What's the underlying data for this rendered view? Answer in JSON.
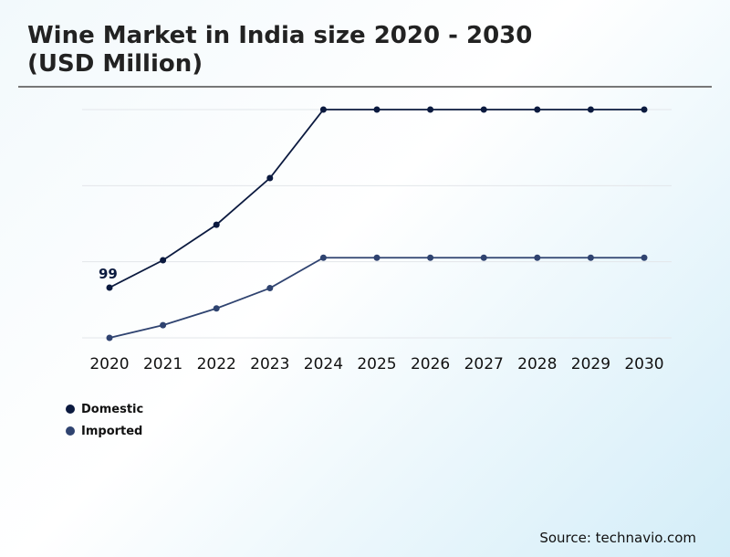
{
  "title_line1": "Wine Market in India size 2020 - 2030",
  "title_line2": "(USD Million)",
  "source": "Source: technavio.com",
  "chart_data": {
    "type": "line",
    "title": "Wine Market in India size 2020 - 2030 (USD Million)",
    "categories": [
      "2020",
      "2021",
      "2022",
      "2023",
      "2024",
      "2025",
      "2026",
      "2027",
      "2028",
      "2029",
      "2030"
    ],
    "series": [
      {
        "name": "Domestic",
        "color": "#0b1a3f",
        "values": [
          99,
          153,
          223,
          315,
          450,
          450,
          450,
          450,
          450,
          450,
          450
        ]
      },
      {
        "name": "Imported",
        "color": "#2f4370",
        "values": [
          0,
          25,
          58,
          98,
          158,
          158,
          158,
          158,
          158,
          158,
          158
        ]
      }
    ],
    "annotations": [
      {
        "series": "Domestic",
        "category": "2020",
        "label": "99"
      }
    ],
    "ylim": [
      0,
      450
    ],
    "yticks": [
      0,
      150,
      300,
      450
    ],
    "grid": true,
    "y_tick_labels_shown": false,
    "legend_placement": "bottom-left"
  }
}
